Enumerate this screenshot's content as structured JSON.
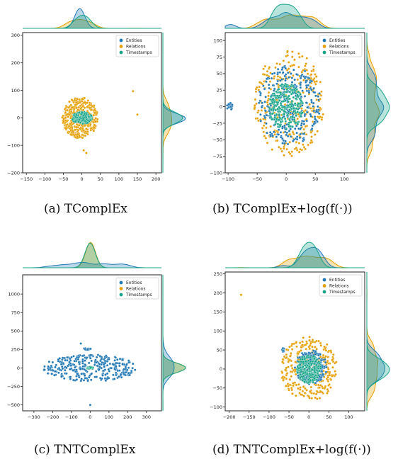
{
  "figure": {
    "captions": [
      "(a)  TComplEx",
      "(b)  TComplEx+log(f(·))",
      "(c)  TNTComplEx",
      "(d)  TNTComplEx+log(f(·))"
    ]
  },
  "colors": {
    "entities": "#1f77b4",
    "relations": "#e69f00",
    "timestamps": "#17a589"
  },
  "chart_data": [
    {
      "type": "scatter",
      "title": "",
      "xlabel": "",
      "ylabel": "",
      "xlim": [
        -160,
        215
      ],
      "ylim": [
        -200,
        310
      ],
      "xticks": [
        -150,
        -100,
        -50,
        0,
        50,
        100,
        150,
        200
      ],
      "yticks": [
        -200,
        -100,
        0,
        100,
        200,
        300
      ],
      "grid": false,
      "legend": "top-right",
      "marginal_kde": true,
      "series": [
        {
          "name": "Entities",
          "cluster": {
            "cx": -5,
            "cy": -2,
            "rx": 8,
            "ry": 6,
            "n": 60
          }
        },
        {
          "name": "Relations",
          "cluster": {
            "cx": -5,
            "cy": 0,
            "rx": 48,
            "ry": 75,
            "n": 420
          },
          "outliers": [
            [
              138,
              97
            ],
            [
              150,
              12
            ],
            [
              12,
              -128
            ],
            [
              5,
              -118
            ]
          ]
        },
        {
          "name": "Timestamps",
          "cluster": {
            "cx": 0,
            "cy": 0,
            "rx": 28,
            "ry": 22,
            "n": 170
          }
        }
      ]
    },
    {
      "type": "scatter",
      "title": "",
      "xlabel": "",
      "ylabel": "",
      "xlim": [
        -105,
        135
      ],
      "ylim": [
        -100,
        112
      ],
      "xticks": [
        -100,
        -50,
        0,
        50,
        100
      ],
      "yticks": [
        -100,
        -75,
        -50,
        -25,
        0,
        25,
        50,
        75,
        100
      ],
      "grid": false,
      "legend": "top-right",
      "marginal_kde": true,
      "series": [
        {
          "name": "Entities",
          "cluster": {
            "cx": 5,
            "cy": 2,
            "rx": 55,
            "ry": 60,
            "n": 300
          },
          "blob": {
            "cx": -97,
            "cy": 0,
            "rx": 5,
            "ry": 6,
            "n": 22
          }
        },
        {
          "name": "Relations",
          "cluster": {
            "cx": 5,
            "cy": 5,
            "rx": 60,
            "ry": 80,
            "n": 320
          }
        },
        {
          "name": "Timestamps",
          "cluster": {
            "cx": 0,
            "cy": 0,
            "rx": 30,
            "ry": 35,
            "n": 260
          }
        }
      ]
    },
    {
      "type": "scatter",
      "title": "",
      "xlabel": "",
      "ylabel": "",
      "xlim": [
        -360,
        380
      ],
      "ylim": [
        -580,
        1260
      ],
      "xticks": [
        -300,
        -200,
        -100,
        0,
        100,
        200,
        300
      ],
      "yticks": [
        -500,
        -250,
        0,
        250,
        500,
        750,
        1000
      ],
      "grid": false,
      "legend": "top-right",
      "marginal_kde": true,
      "series": [
        {
          "name": "Entities",
          "cluster": {
            "cx": 0,
            "cy": 0,
            "rx": 250,
            "ry": 180,
            "n": 330
          },
          "blob": {
            "cx": -20,
            "cy": 255,
            "rx": 25,
            "ry": 12,
            "n": 14
          },
          "outliers": [
            [
              -50,
              330
            ],
            [
              0,
              -500
            ]
          ]
        },
        {
          "name": "Relations",
          "cluster": {
            "cx": 0,
            "cy": 0,
            "rx": 12,
            "ry": 10,
            "n": 10
          }
        },
        {
          "name": "Timestamps",
          "cluster": {
            "cx": 0,
            "cy": 0,
            "rx": 18,
            "ry": 14,
            "n": 35
          }
        }
      ]
    },
    {
      "type": "scatter",
      "title": "",
      "xlabel": "",
      "ylabel": "",
      "xlim": [
        -210,
        140
      ],
      "ylim": [
        -110,
        255
      ],
      "xticks": [
        -200,
        -150,
        -100,
        -50,
        0,
        50,
        100
      ],
      "yticks": [
        -100,
        -50,
        0,
        50,
        100,
        150,
        200,
        250
      ],
      "grid": false,
      "legend": "top-right",
      "marginal_kde": true,
      "series": [
        {
          "name": "Entities",
          "cluster": {
            "cx": 5,
            "cy": 5,
            "rx": 40,
            "ry": 45,
            "n": 230
          },
          "blob": {
            "cx": -65,
            "cy": 50,
            "rx": 4,
            "ry": 5,
            "n": 12
          }
        },
        {
          "name": "Relations",
          "cluster": {
            "cx": 0,
            "cy": 0,
            "rx": 70,
            "ry": 85,
            "n": 320
          },
          "outliers": [
            [
              -170,
              195
            ]
          ]
        },
        {
          "name": "Timestamps",
          "cluster": {
            "cx": 0,
            "cy": 0,
            "rx": 30,
            "ry": 38,
            "n": 230
          }
        }
      ]
    }
  ]
}
